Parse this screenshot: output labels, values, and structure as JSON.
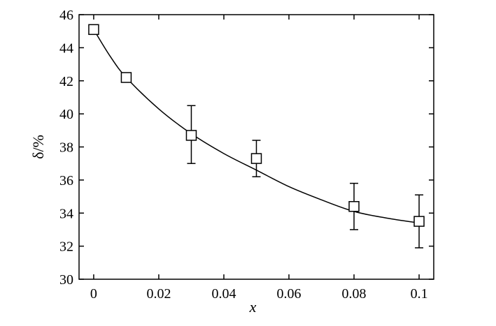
{
  "chart_data": {
    "type": "scatter",
    "title": "",
    "xlabel": "x",
    "ylabel": "δ/%",
    "xlim": [
      -0.0045,
      0.1045
    ],
    "ylim": [
      30,
      46
    ],
    "x_ticks": [
      0,
      0.02,
      0.04,
      0.06,
      0.08,
      0.1
    ],
    "x_tick_labels": [
      "0",
      "0.02",
      "0.04",
      "0.06",
      "0.08",
      "0.1"
    ],
    "y_ticks": [
      30,
      32,
      34,
      36,
      38,
      40,
      42,
      44,
      46
    ],
    "y_tick_labels": [
      "30",
      "32",
      "34",
      "36",
      "38",
      "40",
      "42",
      "44",
      "46"
    ],
    "grid": false,
    "series": [
      {
        "marker": "square",
        "x": [
          0,
          0.01,
          0.03,
          0.05,
          0.08,
          0.1
        ],
        "y": [
          45.1,
          42.2,
          38.7,
          37.3,
          34.4,
          33.5
        ],
        "y_err_lower": [
          45.0,
          42.0,
          37.0,
          36.2,
          33.0,
          31.9
        ],
        "y_err_upper": [
          45.3,
          42.4,
          40.5,
          38.4,
          35.8,
          35.1
        ]
      }
    ],
    "fit_curve": {
      "x": [
        0,
        0.005,
        0.01,
        0.02,
        0.03,
        0.04,
        0.05,
        0.06,
        0.07,
        0.08,
        0.09,
        0.1
      ],
      "y": [
        45.1,
        43.5,
        42.2,
        40.3,
        38.8,
        37.6,
        36.6,
        35.6,
        34.8,
        34.1,
        33.7,
        33.4
      ]
    }
  }
}
